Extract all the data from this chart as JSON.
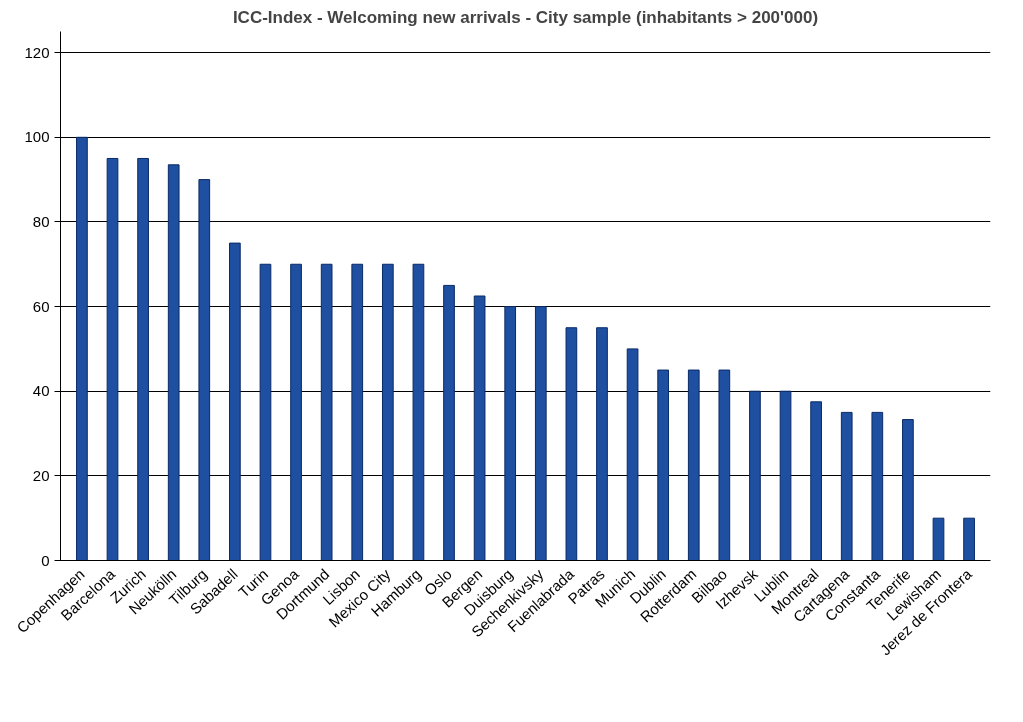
{
  "chart_data": {
    "type": "bar",
    "title": "ICC-Index - Welcoming new arrivals - City sample (inhabitants > 200'000)",
    "categories": [
      "Copenhagen",
      "Barcelona",
      "Zurich",
      "Neukölln",
      "Tilburg",
      "Sabadell",
      "Turin",
      "Genoa",
      "Dortmund",
      "Lisbon",
      "Mexico City",
      "Hamburg",
      "Oslo",
      "Bergen",
      "Duisburg",
      "Sechenkivsky",
      "Fuenlabrada",
      "Patras",
      "Munich",
      "Dublin",
      "Rotterdam",
      "Bilbao",
      "Izhevsk",
      "Lublin",
      "Montreal",
      "Cartagena",
      "Constanta",
      "Tenerife",
      "Lewisham",
      "Jerez de Frontera"
    ],
    "values": [
      100,
      95,
      95,
      93.5,
      90,
      75,
      70,
      70,
      70,
      70,
      70,
      70,
      65,
      62.5,
      60,
      60,
      55,
      55,
      50,
      45,
      45,
      45,
      40,
      40,
      37.5,
      35,
      35,
      33.3,
      10,
      10
    ],
    "color": "#1f4fa0",
    "ylim": [
      0,
      125
    ],
    "yticks": [
      0,
      20,
      40,
      60,
      80,
      100,
      120
    ],
    "grid": "y"
  }
}
